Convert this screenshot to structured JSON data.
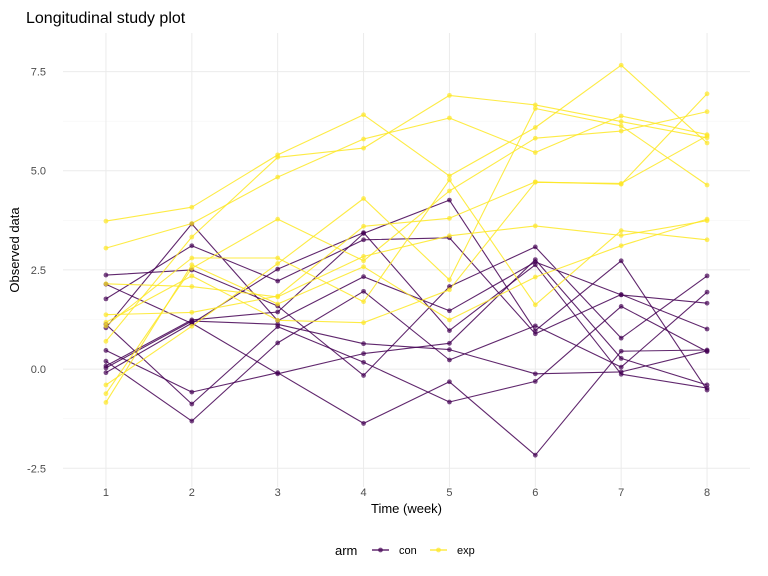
{
  "chart_data": {
    "type": "line",
    "title": "Longitudinal study plot",
    "xlabel": "Time (week)",
    "ylabel": "Observed data",
    "x": [
      1,
      2,
      3,
      4,
      5,
      6,
      7,
      8
    ],
    "xticks": [
      "1",
      "2",
      "3",
      "4",
      "5",
      "6",
      "7",
      "8"
    ],
    "ylim": [
      -2.5,
      8
    ],
    "yticks": [
      -2.5,
      0.0,
      2.5,
      5.0,
      7.5
    ],
    "ytick_labels": [
      "-2.5",
      "0.0",
      "2.5",
      "5.0",
      "7.5"
    ],
    "grid": true,
    "legend": {
      "title": "arm",
      "position": "bottom",
      "entries": [
        {
          "label": "con",
          "color": "#440154"
        },
        {
          "label": "exp",
          "color": "#FDE725"
        }
      ]
    },
    "series": [
      {
        "group": "con",
        "values": [
          0.2,
          -1.31,
          0.66,
          1.96,
          0.23,
          1.09,
          0.05,
          1.94
        ]
      },
      {
        "group": "con",
        "values": [
          1.13,
          -0.88,
          1.07,
          0.17,
          -0.83,
          -0.31,
          1.58,
          0.44
        ]
      },
      {
        "group": "con",
        "values": [
          1.77,
          3.11,
          2.22,
          3.26,
          3.31,
          0.89,
          1.88,
          1.01
        ]
      },
      {
        "group": "con",
        "values": [
          1.04,
          3.66,
          1.22,
          2.33,
          1.47,
          2.7,
          1.87,
          1.66
        ]
      },
      {
        "group": "con",
        "values": [
          0.47,
          -0.58,
          -0.09,
          -1.37,
          -0.32,
          -2.17,
          0.45,
          0.48
        ]
      },
      {
        "group": "con",
        "values": [
          2.37,
          2.5,
          1.59,
          -0.16,
          2.08,
          3.08,
          0.78,
          2.35
        ]
      },
      {
        "group": "con",
        "values": [
          0.03,
          1.21,
          1.13,
          0.64,
          0.49,
          -0.12,
          -0.07,
          0.46
        ]
      },
      {
        "group": "con",
        "values": [
          -0.09,
          1.16,
          -0.12,
          0.39,
          0.65,
          2.76,
          0.27,
          -0.4
        ]
      },
      {
        "group": "con",
        "values": [
          0.08,
          1.24,
          1.44,
          3.42,
          4.26,
          0.97,
          2.73,
          -0.53
        ]
      },
      {
        "group": "con",
        "values": [
          2.14,
          1.15,
          2.52,
          3.44,
          0.97,
          2.63,
          -0.13,
          -0.48
        ]
      },
      {
        "group": "exp",
        "values": [
          3.05,
          3.67,
          4.84,
          5.8,
          6.33,
          5.46,
          6.38,
          5.91
        ]
      },
      {
        "group": "exp",
        "values": [
          -0.84,
          2.63,
          1.64,
          2.58,
          1.24,
          2.32,
          3.11,
          3.78
        ]
      },
      {
        "group": "exp",
        "values": [
          2.15,
          2.08,
          1.82,
          2.84,
          3.36,
          3.61,
          3.37,
          3.74
        ]
      },
      {
        "group": "exp",
        "values": [
          -0.62,
          2.54,
          3.78,
          2.73,
          4.49,
          5.82,
          6.0,
          6.49
        ]
      },
      {
        "group": "exp",
        "values": [
          0.7,
          3.33,
          5.34,
          5.57,
          6.9,
          6.66,
          6.24,
          5.83
        ]
      },
      {
        "group": "exp",
        "values": [
          3.73,
          4.08,
          5.4,
          6.41,
          4.87,
          6.09,
          7.66,
          5.7
        ]
      },
      {
        "group": "exp",
        "values": [
          1.18,
          2.35,
          1.23,
          1.17,
          2.0,
          4.71,
          4.68,
          5.88
        ]
      },
      {
        "group": "exp",
        "values": [
          1.37,
          1.43,
          1.84,
          3.6,
          3.8,
          4.72,
          4.66,
          6.94
        ]
      },
      {
        "group": "exp",
        "values": [
          -0.4,
          1.08,
          2.66,
          4.3,
          2.25,
          6.57,
          6.13,
          4.64
        ]
      },
      {
        "group": "exp",
        "values": [
          1.09,
          2.8,
          2.8,
          1.7,
          4.77,
          1.62,
          3.49,
          3.26
        ]
      }
    ]
  }
}
